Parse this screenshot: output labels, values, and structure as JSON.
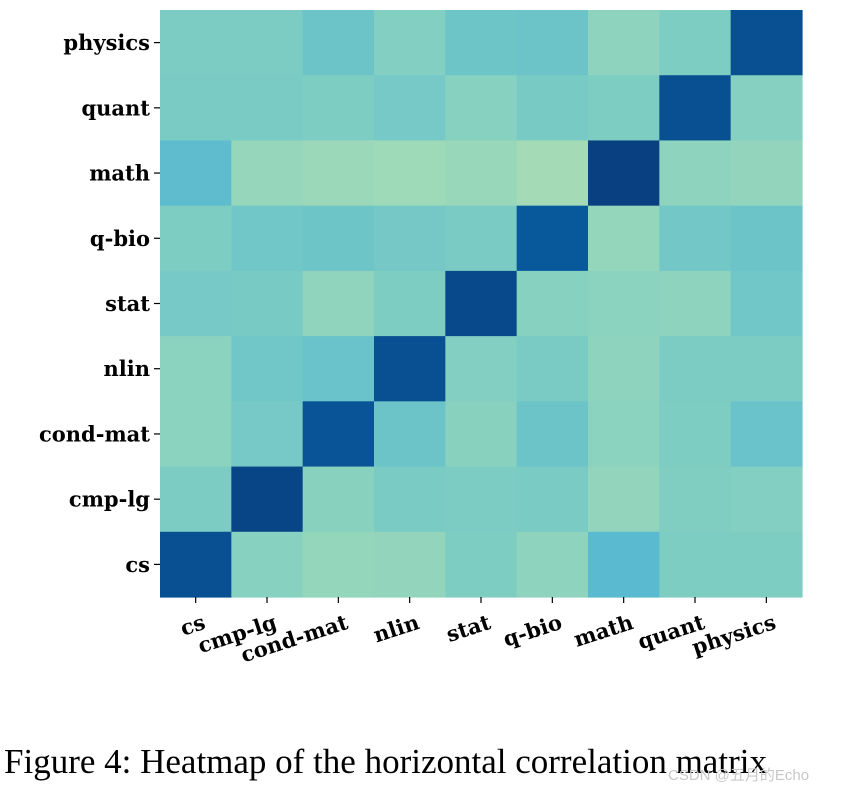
{
  "chart_data": {
    "type": "heatmap",
    "title": "",
    "x_labels": [
      "cs",
      "cmp-lg",
      "cond-mat",
      "nlin",
      "stat",
      "q-bio",
      "math",
      "quant",
      "physics"
    ],
    "y_labels": [
      "physics",
      "quant",
      "math",
      "q-bio",
      "stat",
      "nlin",
      "cond-mat",
      "cmp-lg",
      "cs"
    ],
    "values": [
      [
        0.3,
        0.3,
        0.39,
        0.27,
        0.38,
        0.39,
        0.22,
        0.29,
        1.0
      ],
      [
        0.31,
        0.31,
        0.29,
        0.33,
        0.25,
        0.32,
        0.29,
        1.0,
        0.26
      ],
      [
        0.47,
        0.18,
        0.16,
        0.14,
        0.17,
        0.12,
        1.12,
        0.22,
        0.2
      ],
      [
        0.29,
        0.36,
        0.38,
        0.34,
        0.31,
        0.93,
        0.19,
        0.35,
        0.39
      ],
      [
        0.33,
        0.32,
        0.21,
        0.29,
        1.05,
        0.25,
        0.23,
        0.22,
        0.36
      ],
      [
        0.23,
        0.36,
        0.4,
        1.0,
        0.27,
        0.31,
        0.22,
        0.3,
        0.3
      ],
      [
        0.23,
        0.33,
        0.97,
        0.39,
        0.24,
        0.39,
        0.23,
        0.29,
        0.4
      ],
      [
        0.3,
        1.08,
        0.24,
        0.31,
        0.3,
        0.31,
        0.2,
        0.28,
        0.27
      ],
      [
        1.0,
        0.25,
        0.19,
        0.2,
        0.29,
        0.22,
        0.49,
        0.29,
        0.29
      ]
    ],
    "color_scale": "GnBu",
    "range": [
      0.1,
      1.12
    ],
    "xlabel": "",
    "ylabel": ""
  },
  "caption": "Figure 4: Heatmap of the horizontal correlation matrix",
  "watermark": "CSDN @五月的Echo"
}
